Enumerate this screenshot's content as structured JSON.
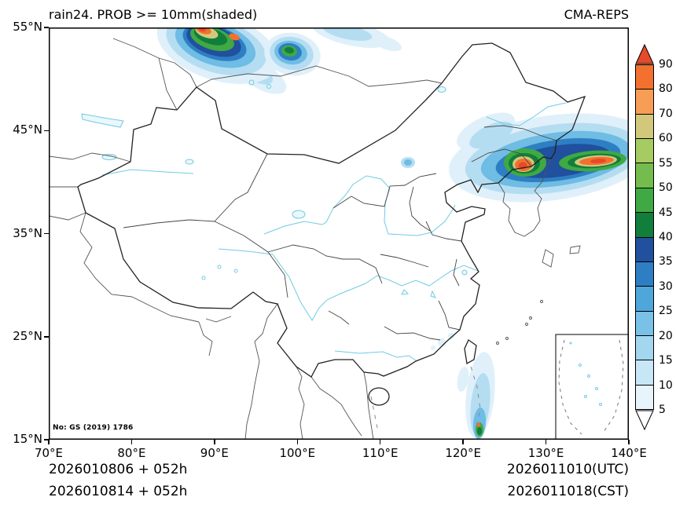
{
  "header": {
    "title": "rain24. PROB >= 10mm(shaded)",
    "model": "CMA-REPS"
  },
  "axes": {
    "x_ticks": [
      "70°E",
      "80°E",
      "90°E",
      "100°E",
      "110°E",
      "120°E",
      "130°E",
      "140°E"
    ],
    "y_ticks": [
      "55°N",
      "45°N",
      "35°N",
      "25°N",
      "15°N"
    ]
  },
  "colorbar": {
    "boundary_labels": [
      "90",
      "80",
      "70",
      "60",
      "55",
      "50",
      "45",
      "40",
      "35",
      "30",
      "25",
      "20",
      "15",
      "10",
      "5"
    ],
    "segment_colors": [
      "#f3702e",
      "#f79d56",
      "#d2c87c",
      "#a6cb62",
      "#74bc4e",
      "#3fa943",
      "#117e3c",
      "#20509e",
      "#2e7ec3",
      "#4fa6da",
      "#79c1e6",
      "#a3d6ef",
      "#c8e7f6",
      "#e7f4fb"
    ],
    "greater_arrow_color": "#e7492a",
    "less_arrow_color": "#ffffff"
  },
  "map": {
    "license": "No: GS (2019) 1786",
    "shaded_areas": [
      {
        "region": "78–92°E near north edge",
        "lat": "51–55°N",
        "max_band": ">90"
      },
      {
        "region": "93–98°E near north edge",
        "lat": "52–55°N",
        "max_band": "45–55"
      },
      {
        "region": "99–107°E along north edge",
        "lat": "53–55°N",
        "max_band": "5–15"
      },
      {
        "region": "Northeast China / Russian Far East 118–140°E",
        "lat": "40–48°N",
        "max_band": ">90"
      },
      {
        "region": "Bohai coast ~119°E",
        "lat": "39–40°N",
        "max_band": "20–30"
      },
      {
        "region": "Luzon Strait ~121–123°E",
        "lat": "15–22°N",
        "max_band": "80–90"
      },
      {
        "region": "Fujian coast ~117–119°E",
        "lat": "23–25°N",
        "max_band": "5–15"
      }
    ]
  },
  "footer": {
    "run_line_utc": "2026010806  +  052h",
    "run_line_cst": "2026010814  +  052h",
    "valid_utc": "2026011010(UTC)",
    "valid_cst": "2026011018(CST)"
  }
}
